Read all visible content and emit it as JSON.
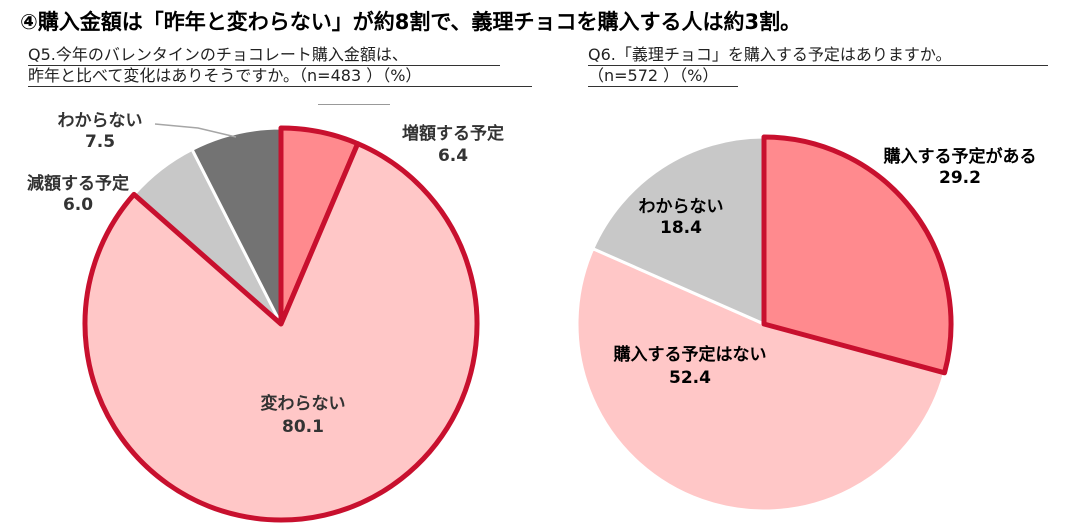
{
  "headline": "④購入金額は「昨年と変わらない」が約8割で、義理チョコを購入する人は約3割。",
  "chart_data": [
    {
      "type": "pie",
      "title_lines": [
        "Q5.今年のバレンタインのチョコレート購入金額は、",
        "昨年と比べて変化はありそうですか。（n=483 ）（%）"
      ],
      "slices": [
        {
          "label": "増額する予定",
          "value": 6.4,
          "value_text": "6.4",
          "color": "#ff8a8e",
          "highlight": true
        },
        {
          "label": "変わらない",
          "value": 80.1,
          "value_text": "80.1",
          "color": "#ffc7c7",
          "highlight": true
        },
        {
          "label": "減額する予定",
          "value": 6.0,
          "value_text": "6.0",
          "color": "#c8c8c8",
          "highlight": false
        },
        {
          "label": "わからない",
          "value": 7.5,
          "value_text": "7.5",
          "color": "#737373",
          "highlight": false
        }
      ]
    },
    {
      "type": "pie",
      "title_lines": [
        "Q6.「義理チョコ」を購入する予定はありますか。",
        "（n=572 ）（%）"
      ],
      "slices": [
        {
          "label": "購入する予定がある",
          "value": 29.2,
          "value_text": "29.2",
          "color": "#ff8a8e",
          "highlight": true
        },
        {
          "label": "購入する予定はない",
          "value": 52.4,
          "value_text": "52.4",
          "color": "#ffc7c7",
          "highlight": false
        },
        {
          "label": "わからない",
          "value": 18.4,
          "value_text": "18.4",
          "color": "#c8c8c8",
          "highlight": false
        }
      ]
    }
  ]
}
